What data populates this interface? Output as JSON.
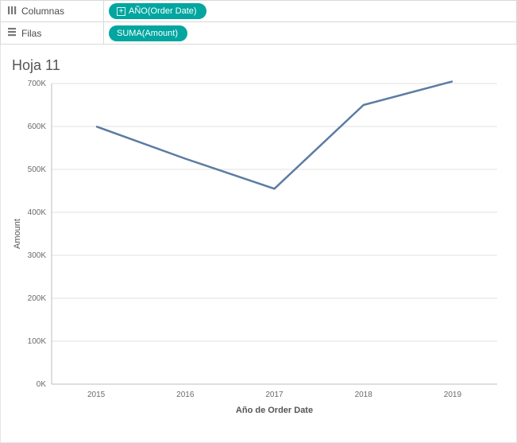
{
  "shelves": {
    "columns": {
      "label": "Columnas",
      "icon": "columns-icon",
      "pills": [
        {
          "text": "AÑO(Order Date)",
          "expandable": true,
          "bg_color": "#00a69f",
          "text_color": "#ffffff"
        }
      ]
    },
    "rows": {
      "label": "Filas",
      "icon": "rows-icon",
      "pills": [
        {
          "text": "SUMA(Amount)",
          "expandable": false,
          "bg_color": "#00a69f",
          "text_color": "#ffffff"
        }
      ]
    }
  },
  "sheet": {
    "title": "Hoja 11"
  },
  "chart": {
    "type": "line",
    "x_axis": {
      "title": "Año de Order Date",
      "categories": [
        "2015",
        "2016",
        "2017",
        "2018",
        "2019"
      ]
    },
    "y_axis": {
      "title": "Amount",
      "min": 0,
      "max": 700000,
      "tick_step": 100000,
      "tick_labels": [
        "0K",
        "100K",
        "200K",
        "300K",
        "400K",
        "500K",
        "600K",
        "700K"
      ]
    },
    "series": [
      {
        "name": "Amount",
        "color": "#5b7ca3",
        "width": 2.5,
        "values": [
          600000,
          525000,
          455000,
          650000,
          705000
        ]
      }
    ],
    "background_color": "#ffffff",
    "grid_color": "#e0e0e0",
    "axis_color": "#bdbdbd",
    "label_color": "#6a6a6a",
    "label_fontsize": 10,
    "title_fontsize": 11
  }
}
